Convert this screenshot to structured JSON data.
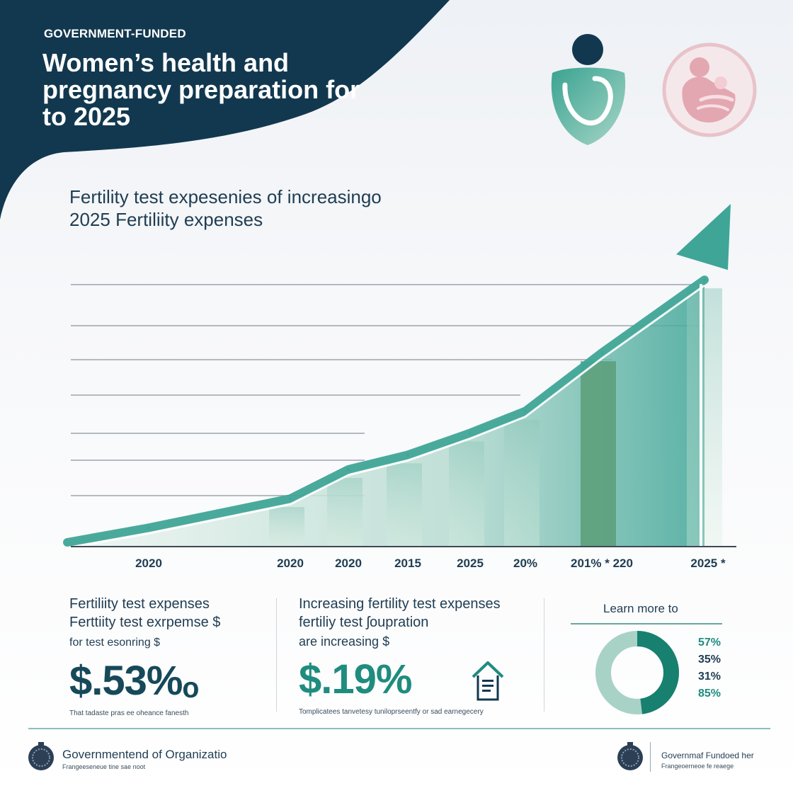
{
  "header": {
    "eyebrow": "GOVERNMENT-FUNDED",
    "title": "Women’s health and pregnancy preparation for to 2025"
  },
  "icons": {
    "health": "health-shield-icon",
    "mother_child": "mother-child-icon"
  },
  "chart_title": "Fertility test expesenies of increasingo 2025 Fertiliity expenses",
  "chart_data": {
    "type": "area",
    "title": "Fertility test expesenies of increasingo 2025 Fertiliity expenses",
    "xlabel": "",
    "ylabel": "",
    "x": [
      "2020",
      "2020",
      "2020",
      "2015",
      "2025",
      "20%",
      "201% * 220",
      "2025 *"
    ],
    "values": [
      1,
      3,
      5,
      6,
      7.5,
      9,
      13,
      18
    ],
    "ylim": [
      0,
      20
    ],
    "grid": true,
    "trend_arrow": true,
    "colors": {
      "line": "#3fa597",
      "fill_light": "#d8ece4",
      "fill_dark": "#5a9e78"
    }
  },
  "stats": {
    "card1": {
      "line1": "Fertiliity test expenses",
      "line2": "Ferttiity test exrpemse $",
      "line3": "for test esonring $",
      "value": "$.53%ₒ",
      "fine": "That tadaste pras ee oheance fanesth"
    },
    "card2": {
      "line1": "Increasing fertility test expenses",
      "line2": "fertiliy test ʃoupration",
      "line3": "are increasing $",
      "value": "$.19%",
      "fine": "Tomplicatees tanvetesy tuniloprseentfy or sad earnegecery"
    },
    "card3": {
      "title": "Learn more to",
      "percentages": [
        "57%",
        "35%",
        "31%",
        "85%"
      ],
      "donut_share": 0.48
    }
  },
  "footer": {
    "left_name": "Governmentend of Organizatio",
    "left_sub": "Frangeeseneue tine sae noot",
    "right_name": "Governmaf Fundoed her",
    "right_sub": "Frangeoerneoe fe reaege"
  },
  "colors": {
    "navy": "#12384f",
    "teal": "#1f8c7e",
    "pink": "#e3a7b2"
  }
}
